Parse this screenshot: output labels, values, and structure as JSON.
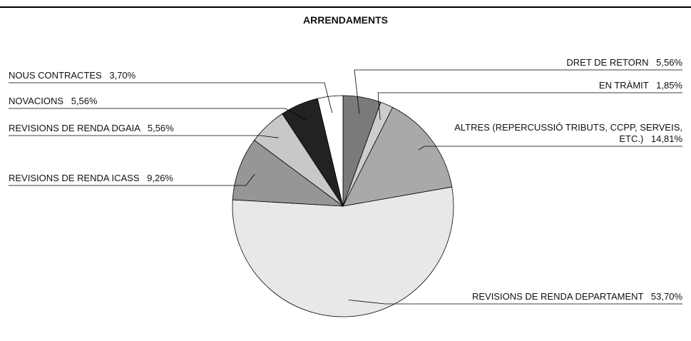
{
  "chart_data": {
    "type": "pie",
    "title": "ARRENDAMENTS",
    "categories": [
      "DRET DE RETORN",
      "EN TRÀMIT",
      "ALTRES (REPERCUSSIÓ TRIBUTS, CCPP, SERVEIS, ETC.)",
      "REVISIONS DE RENDA DEPARTAMENT",
      "REVISIONS DE RENDA ICASS",
      "REVISIONS DE RENDA DGAIA",
      "NOVACIONS",
      "NOUS CONTRACTES"
    ],
    "values": [
      5.56,
      1.85,
      14.81,
      53.7,
      9.26,
      5.56,
      5.56,
      3.7
    ],
    "value_labels": [
      "5,56%",
      "1,85%",
      "14,81%",
      "53,70%",
      "9,26%",
      "5,56%",
      "5,56%",
      "3,70%"
    ],
    "colors": [
      "#7a7a7a",
      "#cdcdcd",
      "#a9a9a9",
      "#e8e8e8",
      "#969696",
      "#c8c8c8",
      "#222222",
      "#ffffff"
    ]
  }
}
